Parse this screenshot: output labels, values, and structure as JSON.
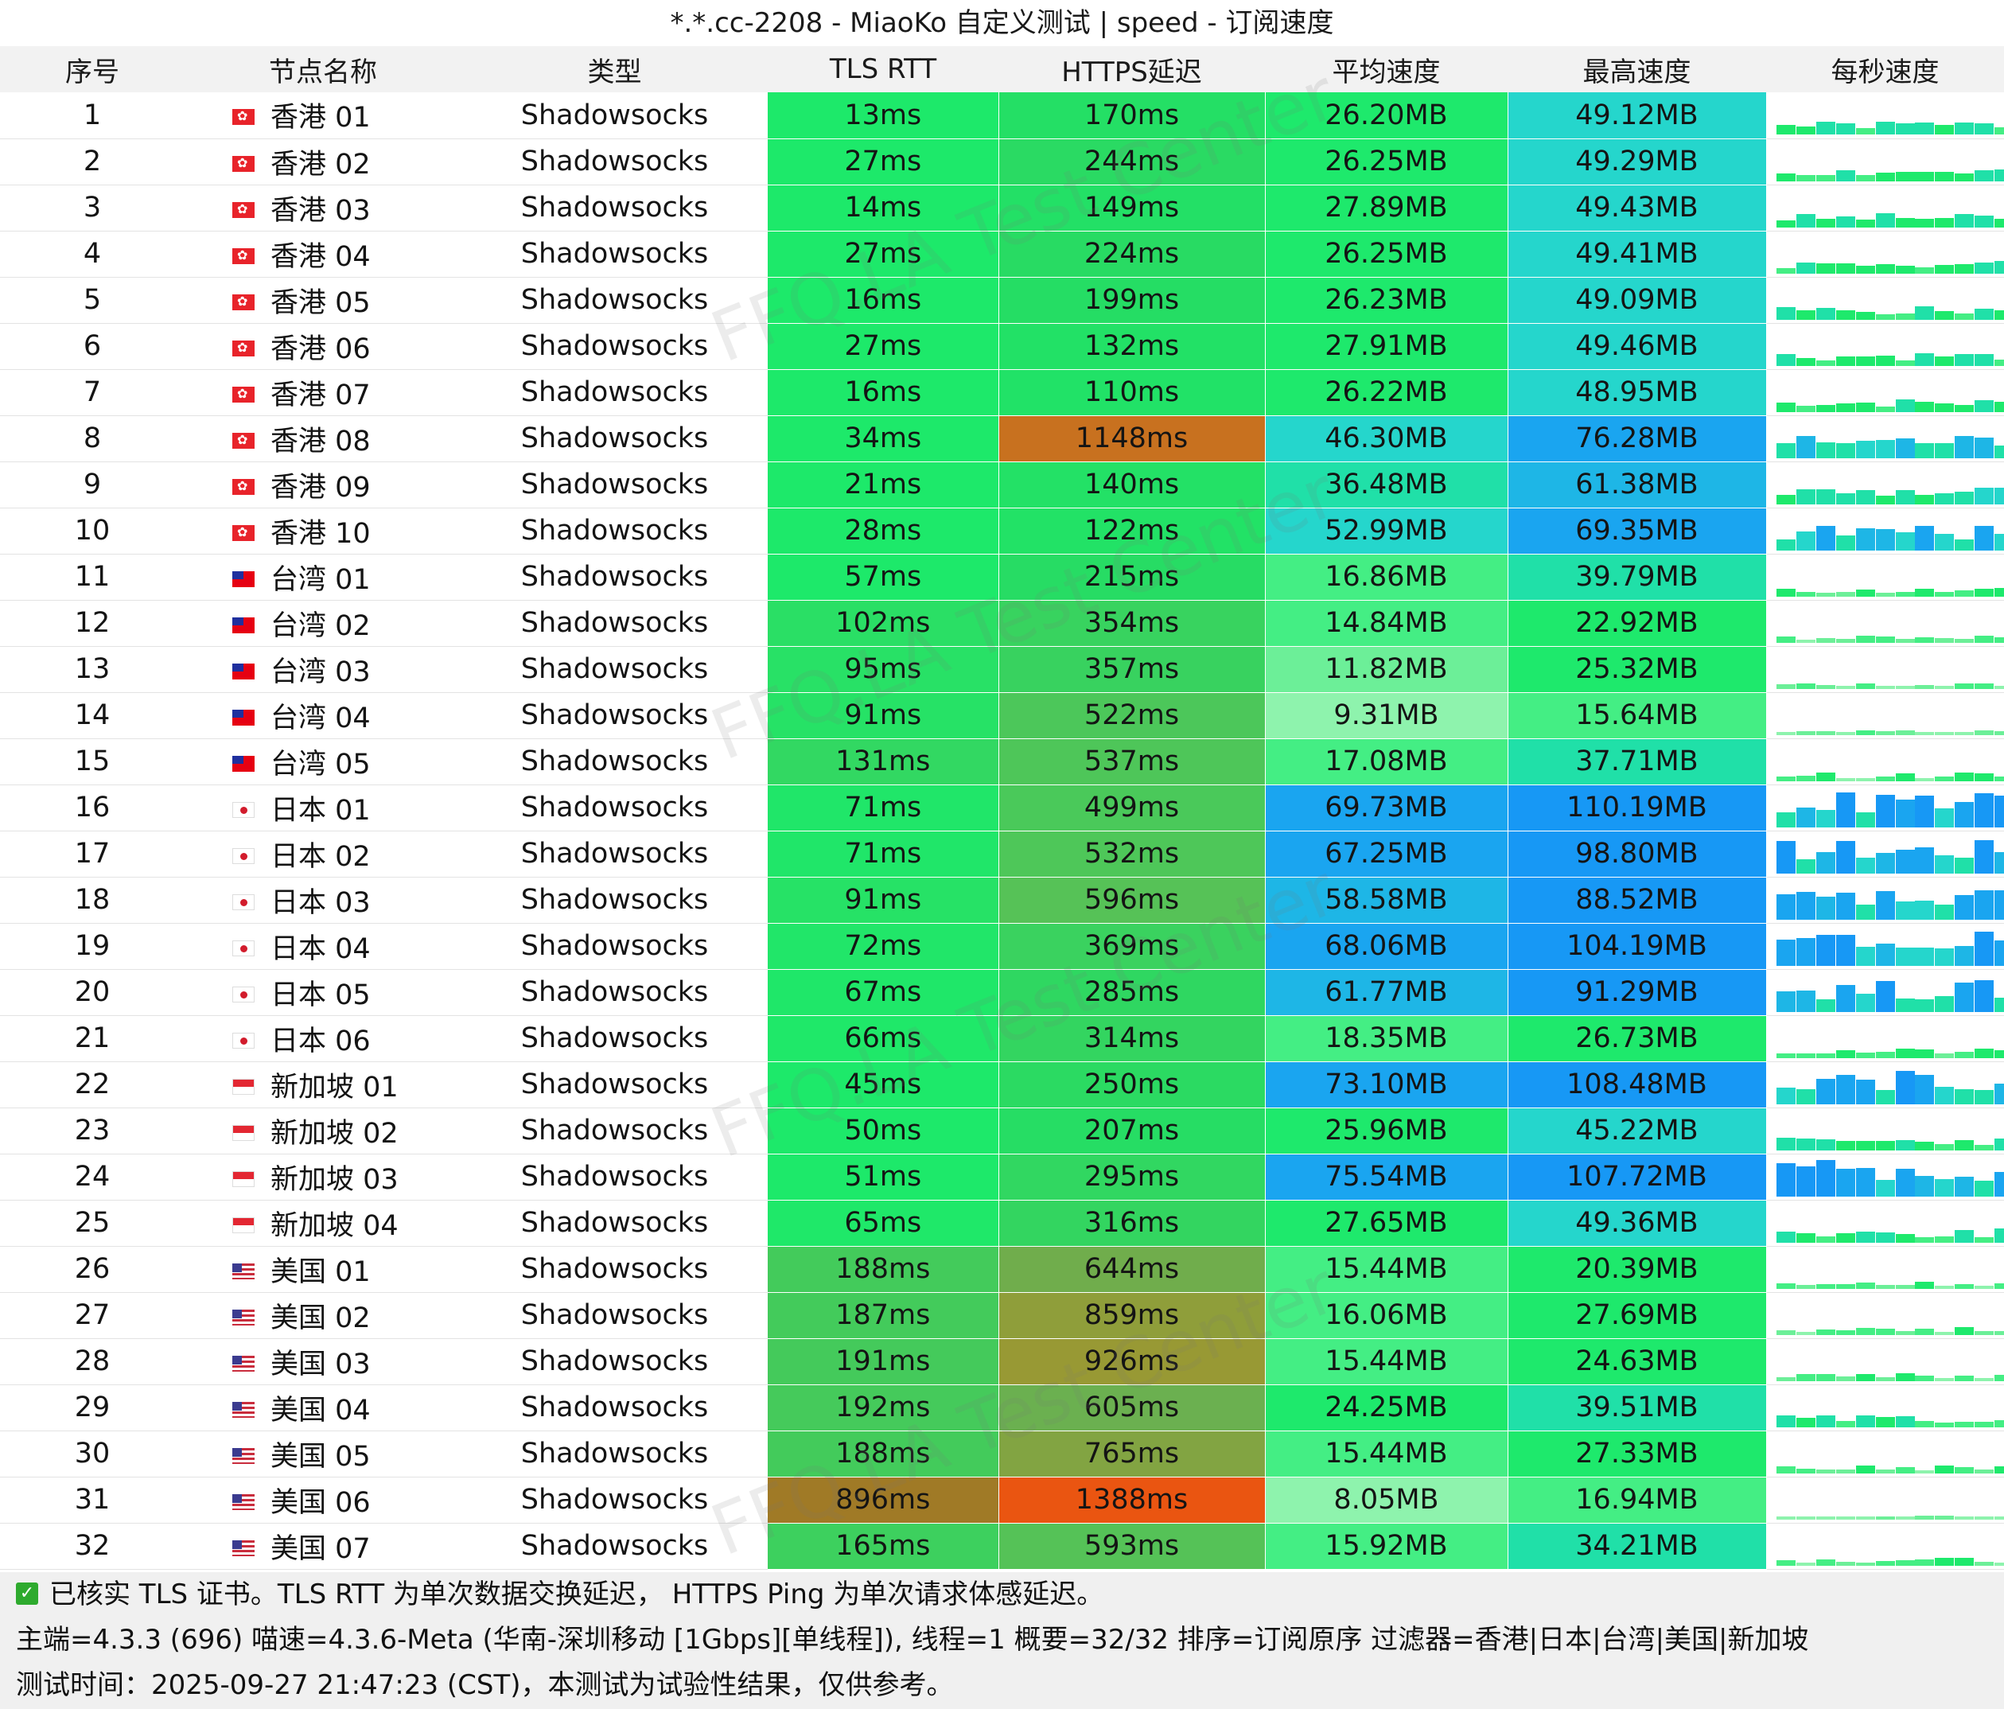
{
  "window": {
    "title": "*.*.cc-2208 - MiaoKo 自定义测试 | speed - 订阅速度"
  },
  "table": {
    "headers": [
      "序号",
      "节点名称",
      "类型",
      "TLS RTT",
      "HTTPS延迟",
      "平均速度",
      "最高速度",
      "每秒速度"
    ],
    "rows": [
      {
        "idx": "1",
        "flag": "hk",
        "name": "香港 01",
        "type": "Shadowsocks",
        "tls": "13ms",
        "https": "170ms",
        "avg": "26.20MB",
        "max": "49.12MB"
      },
      {
        "idx": "2",
        "flag": "hk",
        "name": "香港 02",
        "type": "Shadowsocks",
        "tls": "27ms",
        "https": "244ms",
        "avg": "26.25MB",
        "max": "49.29MB"
      },
      {
        "idx": "3",
        "flag": "hk",
        "name": "香港 03",
        "type": "Shadowsocks",
        "tls": "14ms",
        "https": "149ms",
        "avg": "27.89MB",
        "max": "49.43MB"
      },
      {
        "idx": "4",
        "flag": "hk",
        "name": "香港 04",
        "type": "Shadowsocks",
        "tls": "27ms",
        "https": "224ms",
        "avg": "26.25MB",
        "max": "49.41MB"
      },
      {
        "idx": "5",
        "flag": "hk",
        "name": "香港 05",
        "type": "Shadowsocks",
        "tls": "16ms",
        "https": "199ms",
        "avg": "26.23MB",
        "max": "49.09MB"
      },
      {
        "idx": "6",
        "flag": "hk",
        "name": "香港 06",
        "type": "Shadowsocks",
        "tls": "27ms",
        "https": "132ms",
        "avg": "27.91MB",
        "max": "49.46MB"
      },
      {
        "idx": "7",
        "flag": "hk",
        "name": "香港 07",
        "type": "Shadowsocks",
        "tls": "16ms",
        "https": "110ms",
        "avg": "26.22MB",
        "max": "48.95MB"
      },
      {
        "idx": "8",
        "flag": "hk",
        "name": "香港 08",
        "type": "Shadowsocks",
        "tls": "34ms",
        "https": "1148ms",
        "avg": "46.30MB",
        "max": "76.28MB"
      },
      {
        "idx": "9",
        "flag": "hk",
        "name": "香港 09",
        "type": "Shadowsocks",
        "tls": "21ms",
        "https": "140ms",
        "avg": "36.48MB",
        "max": "61.38MB"
      },
      {
        "idx": "10",
        "flag": "hk",
        "name": "香港 10",
        "type": "Shadowsocks",
        "tls": "28ms",
        "https": "122ms",
        "avg": "52.99MB",
        "max": "69.35MB"
      },
      {
        "idx": "11",
        "flag": "tw",
        "name": "台湾 01",
        "type": "Shadowsocks",
        "tls": "57ms",
        "https": "215ms",
        "avg": "16.86MB",
        "max": "39.79MB"
      },
      {
        "idx": "12",
        "flag": "tw",
        "name": "台湾 02",
        "type": "Shadowsocks",
        "tls": "102ms",
        "https": "354ms",
        "avg": "14.84MB",
        "max": "22.92MB"
      },
      {
        "idx": "13",
        "flag": "tw",
        "name": "台湾 03",
        "type": "Shadowsocks",
        "tls": "95ms",
        "https": "357ms",
        "avg": "11.82MB",
        "max": "25.32MB"
      },
      {
        "idx": "14",
        "flag": "tw",
        "name": "台湾 04",
        "type": "Shadowsocks",
        "tls": "91ms",
        "https": "522ms",
        "avg": "9.31MB",
        "max": "15.64MB"
      },
      {
        "idx": "15",
        "flag": "tw",
        "name": "台湾 05",
        "type": "Shadowsocks",
        "tls": "131ms",
        "https": "537ms",
        "avg": "17.08MB",
        "max": "37.71MB"
      },
      {
        "idx": "16",
        "flag": "jp",
        "name": "日本 01",
        "type": "Shadowsocks",
        "tls": "71ms",
        "https": "499ms",
        "avg": "69.73MB",
        "max": "110.19MB"
      },
      {
        "idx": "17",
        "flag": "jp",
        "name": "日本 02",
        "type": "Shadowsocks",
        "tls": "71ms",
        "https": "532ms",
        "avg": "67.25MB",
        "max": "98.80MB"
      },
      {
        "idx": "18",
        "flag": "jp",
        "name": "日本 03",
        "type": "Shadowsocks",
        "tls": "91ms",
        "https": "596ms",
        "avg": "58.58MB",
        "max": "88.52MB"
      },
      {
        "idx": "19",
        "flag": "jp",
        "name": "日本 04",
        "type": "Shadowsocks",
        "tls": "72ms",
        "https": "369ms",
        "avg": "68.06MB",
        "max": "104.19MB"
      },
      {
        "idx": "20",
        "flag": "jp",
        "name": "日本 05",
        "type": "Shadowsocks",
        "tls": "67ms",
        "https": "285ms",
        "avg": "61.77MB",
        "max": "91.29MB"
      },
      {
        "idx": "21",
        "flag": "jp",
        "name": "日本 06",
        "type": "Shadowsocks",
        "tls": "66ms",
        "https": "314ms",
        "avg": "18.35MB",
        "max": "26.73MB"
      },
      {
        "idx": "22",
        "flag": "sg",
        "name": "新加坡 01",
        "type": "Shadowsocks",
        "tls": "45ms",
        "https": "250ms",
        "avg": "73.10MB",
        "max": "108.48MB"
      },
      {
        "idx": "23",
        "flag": "sg",
        "name": "新加坡 02",
        "type": "Shadowsocks",
        "tls": "50ms",
        "https": "207ms",
        "avg": "25.96MB",
        "max": "45.22MB"
      },
      {
        "idx": "24",
        "flag": "sg",
        "name": "新加坡 03",
        "type": "Shadowsocks",
        "tls": "51ms",
        "https": "295ms",
        "avg": "75.54MB",
        "max": "107.72MB"
      },
      {
        "idx": "25",
        "flag": "sg",
        "name": "新加坡 04",
        "type": "Shadowsocks",
        "tls": "65ms",
        "https": "316ms",
        "avg": "27.65MB",
        "max": "49.36MB"
      },
      {
        "idx": "26",
        "flag": "us",
        "name": "美国 01",
        "type": "Shadowsocks",
        "tls": "188ms",
        "https": "644ms",
        "avg": "15.44MB",
        "max": "20.39MB"
      },
      {
        "idx": "27",
        "flag": "us",
        "name": "美国 02",
        "type": "Shadowsocks",
        "tls": "187ms",
        "https": "859ms",
        "avg": "16.06MB",
        "max": "27.69MB"
      },
      {
        "idx": "28",
        "flag": "us",
        "name": "美国 03",
        "type": "Shadowsocks",
        "tls": "191ms",
        "https": "926ms",
        "avg": "15.44MB",
        "max": "24.63MB"
      },
      {
        "idx": "29",
        "flag": "us",
        "name": "美国 04",
        "type": "Shadowsocks",
        "tls": "192ms",
        "https": "605ms",
        "avg": "24.25MB",
        "max": "39.51MB"
      },
      {
        "idx": "30",
        "flag": "us",
        "name": "美国 05",
        "type": "Shadowsocks",
        "tls": "188ms",
        "https": "765ms",
        "avg": "15.44MB",
        "max": "27.33MB"
      },
      {
        "idx": "31",
        "flag": "us",
        "name": "美国 06",
        "type": "Shadowsocks",
        "tls": "896ms",
        "https": "1388ms",
        "avg": "8.05MB",
        "max": "16.94MB"
      },
      {
        "idx": "32",
        "flag": "us",
        "name": "美国 07",
        "type": "Shadowsocks",
        "tls": "165ms",
        "https": "593ms",
        "avg": "15.92MB",
        "max": "34.21MB"
      }
    ]
  },
  "footer": {
    "note": "已核实 TLS 证书。TLS RTT 为单次数据交换延迟， HTTPS Ping 为单次请求体感延迟。",
    "info": "主端=4.3.3 (696) 喵速=4.3.6-Meta (华南-深圳移动 [1Gbps][单线程]), 线程=1 概要=32/32 排序=订阅原序 过滤器=香港|日本|台湾|美国|新加坡",
    "time": "测试时间：2025-09-27 21:47:23 (CST)，本测试为试验性结果，仅供参考。"
  },
  "watermark": "FFQ.LA Test Center",
  "colors": {
    "green": "#1de96a",
    "cyan": "#25d9c8",
    "blue": "#1a9df3",
    "orange_dark": "#c8711f",
    "orange_red": "#ea5511",
    "olive": "#8e9a3a",
    "header_bg": "#f2f2f2",
    "footer_bg": "#f0f0f0"
  },
  "icons": {
    "checkbox": "check-icon"
  }
}
